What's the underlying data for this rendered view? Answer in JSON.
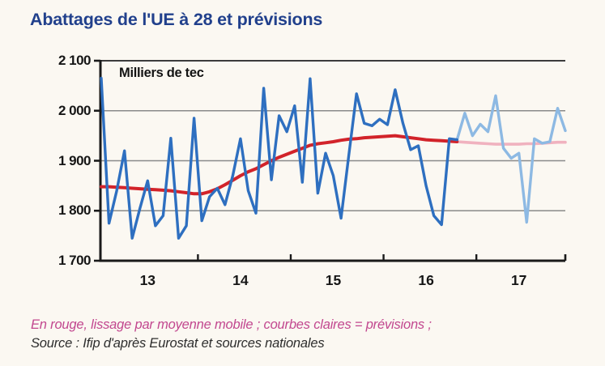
{
  "title": "Abattages de l'UE à 28 et prévisions",
  "footer": {
    "legend_note": "En rouge, lissage par moyenne mobile ; courbes claires = prévisions ;",
    "source": "Source : Ifip d'après Eurostat et sources nationales"
  },
  "chart_data": {
    "type": "line",
    "unit_label": "Milliers de tec",
    "frequency": "monthly",
    "x_start": "2012-12",
    "grid": "horizontal-only",
    "legend_position": "none (explained in footer note)",
    "y_axis": {
      "ylim": [
        1700,
        2100
      ],
      "ticks": [
        {
          "label": "2 100",
          "value": 2100
        },
        {
          "label": "2 000",
          "value": 2000
        },
        {
          "label": "1 900",
          "value": 1900
        },
        {
          "label": "1 800",
          "value": 1800
        },
        {
          "label": "1 700",
          "value": 1700
        }
      ],
      "gridline_values": [
        2000,
        1900,
        1800
      ]
    },
    "x_axis": {
      "year_labels": [
        {
          "label": "13",
          "mid_month_index": 6
        },
        {
          "label": "14",
          "mid_month_index": 18
        },
        {
          "label": "15",
          "mid_month_index": 30
        },
        {
          "label": "16",
          "mid_month_index": 42
        },
        {
          "label": "17",
          "mid_month_index": 54
        }
      ],
      "boundary_tick_month_indices": [
        12.5,
        24.5,
        36.5,
        48.5,
        60
      ]
    },
    "series": [
      {
        "name": "lissage-moyenne-mobile-prevision",
        "role": "forecast",
        "color": "#f0b2bf",
        "width": 3.6,
        "start_index": 46,
        "values": [
          1938,
          1937,
          1936,
          1935,
          1934,
          1933,
          1933,
          1933,
          1933,
          1934,
          1934,
          1935,
          1936,
          1937,
          1937
        ]
      },
      {
        "name": "abattages-mensuels-prevision",
        "role": "forecast",
        "color": "#8db9e3",
        "width": 3.4,
        "start_index": 46,
        "values": [
          1942,
          1995,
          1950,
          1973,
          1958,
          2030,
          1925,
          1905,
          1915,
          1777,
          1944,
          1935,
          1938,
          2005,
          1960
        ]
      },
      {
        "name": "lissage-moyenne-mobile",
        "role": "actual",
        "color": "#d2232a",
        "width": 4,
        "start_index": 0,
        "values": [
          1848,
          1848,
          1847,
          1846,
          1845,
          1844,
          1843,
          1842,
          1841,
          1840,
          1838,
          1836,
          1834,
          1834,
          1838,
          1844,
          1852,
          1861,
          1870,
          1878,
          1884,
          1892,
          1900,
          1907,
          1913,
          1919,
          1925,
          1931,
          1934,
          1936,
          1938,
          1941,
          1943,
          1944,
          1946,
          1947,
          1948,
          1949,
          1950,
          1948,
          1946,
          1944,
          1942,
          1941,
          1940,
          1939,
          1938
        ]
      },
      {
        "name": "abattages-mensuels",
        "role": "actual",
        "color": "#2e6fc0",
        "width": 3.4,
        "start_index": 0,
        "values": [
          2065,
          1775,
          1840,
          1920,
          1745,
          1805,
          1860,
          1770,
          1790,
          1945,
          1745,
          1770,
          1985,
          1780,
          1828,
          1845,
          1812,
          1870,
          1944,
          1840,
          1795,
          2045,
          1862,
          1990,
          1958,
          2010,
          1857,
          2064,
          1835,
          1915,
          1870,
          1785,
          1910,
          2034,
          1975,
          1970,
          1983,
          1972,
          2042,
          1975,
          1922,
          1930,
          1850,
          1790,
          1772,
          1944,
          1942
        ]
      }
    ],
    "colors": {
      "actual_line": "#2e6fc0",
      "forecast_line": "#8db9e3",
      "moving_average": "#d2232a",
      "moving_average_forecast": "#f0b2bf",
      "gridline": "#8a8a8a",
      "axis": "#1a1a1a",
      "title": "#21408c",
      "note": "#c2478f"
    }
  }
}
